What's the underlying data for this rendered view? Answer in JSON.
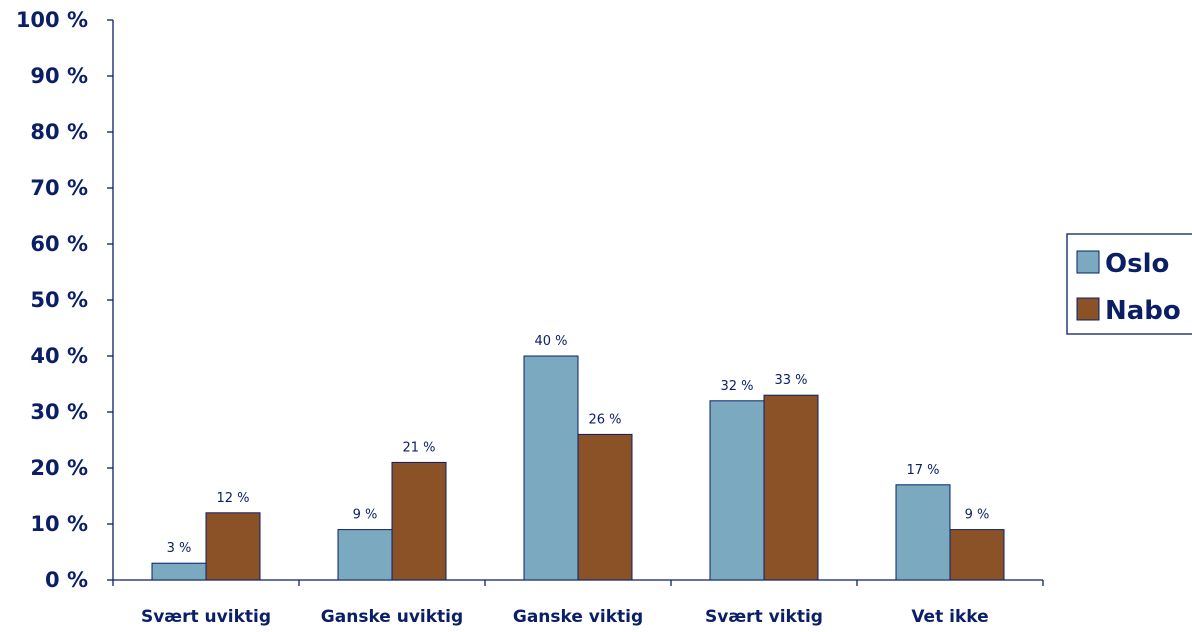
{
  "chart_data": {
    "type": "bar",
    "categories": [
      "Svært uviktig",
      "Ganske uviktig",
      "Ganske viktig",
      "Svært viktig",
      "Vet ikke"
    ],
    "series": [
      {
        "name": "Oslo",
        "values": [
          3,
          9,
          40,
          32,
          17
        ],
        "color": "#7aa9c0",
        "labels": [
          "3 %",
          "9 %",
          "40 %",
          "32 %",
          "17 %"
        ]
      },
      {
        "name": "Nabo",
        "values": [
          12,
          21,
          26,
          33,
          9
        ],
        "color": "#8b5228",
        "labels": [
          "12 %",
          "21 %",
          "26 %",
          "33 %",
          "9 %"
        ]
      }
    ],
    "ylim": [
      0,
      100
    ],
    "y_ticks": [
      0,
      10,
      20,
      30,
      40,
      50,
      60,
      70,
      80,
      90,
      100
    ],
    "y_tick_labels": [
      "0 %",
      "10 %",
      "20 %",
      "30 %",
      "40 %",
      "50 %",
      "60 %",
      "70 %",
      "80 %",
      "90 %",
      "100 %"
    ],
    "grid": false,
    "legend_position": "right",
    "title": "",
    "xlabel": "",
    "ylabel": "",
    "text_color": "#0a1f66"
  }
}
